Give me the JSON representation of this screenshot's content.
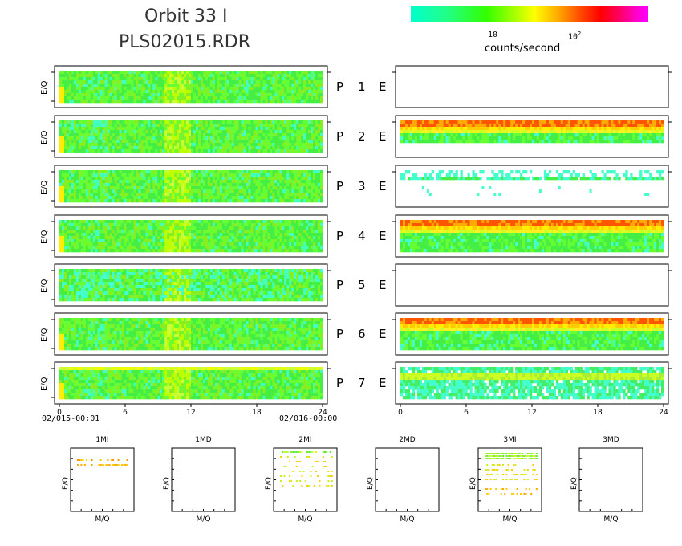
{
  "header": {
    "title_line1": "Orbit 33 I",
    "title_line2": "PLS02015.RDR"
  },
  "colorbar": {
    "tick_labels": [
      "10",
      "10",
      "2"
    ],
    "unit_label": "counts/second",
    "colors": [
      "#00ffcc",
      "#22ff88",
      "#33ff00",
      "#aaff00",
      "#ffff00",
      "#ffaa00",
      "#ff4400",
      "#ff0000",
      "#ff0066",
      "#ff00cc",
      "#ff00ff"
    ]
  },
  "panels": {
    "ylabel": "E/Q",
    "row_labels": [
      "P",
      "P",
      "P",
      "P",
      "P",
      "P",
      "P"
    ],
    "row_numbers": [
      "1",
      "2",
      "3",
      "4",
      "5",
      "6",
      "7"
    ],
    "e_label": "E",
    "x_ticks": [
      "0",
      "6",
      "12",
      "18",
      "24"
    ],
    "start_time": "02/015-00:01",
    "end_time": "02/016-00:00"
  },
  "chart_data": {
    "type": "heatmap",
    "x_range": [
      0,
      24
    ],
    "x_ticks": [
      0,
      6,
      12,
      18,
      24
    ],
    "color_scale": "log",
    "color_unit": "counts/second",
    "panels_left": [
      {
        "name": "P 1",
        "level": "mid"
      },
      {
        "name": "P 2",
        "level": "mid"
      },
      {
        "name": "P 3",
        "level": "mid"
      },
      {
        "name": "P 4",
        "level": "mid"
      },
      {
        "name": "P 5",
        "level": "low"
      },
      {
        "name": "P 6",
        "level": "mid"
      },
      {
        "name": "P 7",
        "level": "mid"
      }
    ],
    "panels_right": [
      {
        "name": "E 1",
        "level": "empty"
      },
      {
        "name": "E 2",
        "level": "high-band"
      },
      {
        "name": "E 3",
        "level": "sparse"
      },
      {
        "name": "E 4",
        "level": "high-band"
      },
      {
        "name": "E 5",
        "level": "empty"
      },
      {
        "name": "E 6",
        "level": "high-band"
      },
      {
        "name": "E 7",
        "level": "low"
      }
    ]
  },
  "mass_panels": {
    "titles": [
      "1MI",
      "1MD",
      "2MI",
      "2MD",
      "3MI",
      "3MD"
    ],
    "ylabel": "E/Q",
    "xlabel": "M/Q"
  }
}
